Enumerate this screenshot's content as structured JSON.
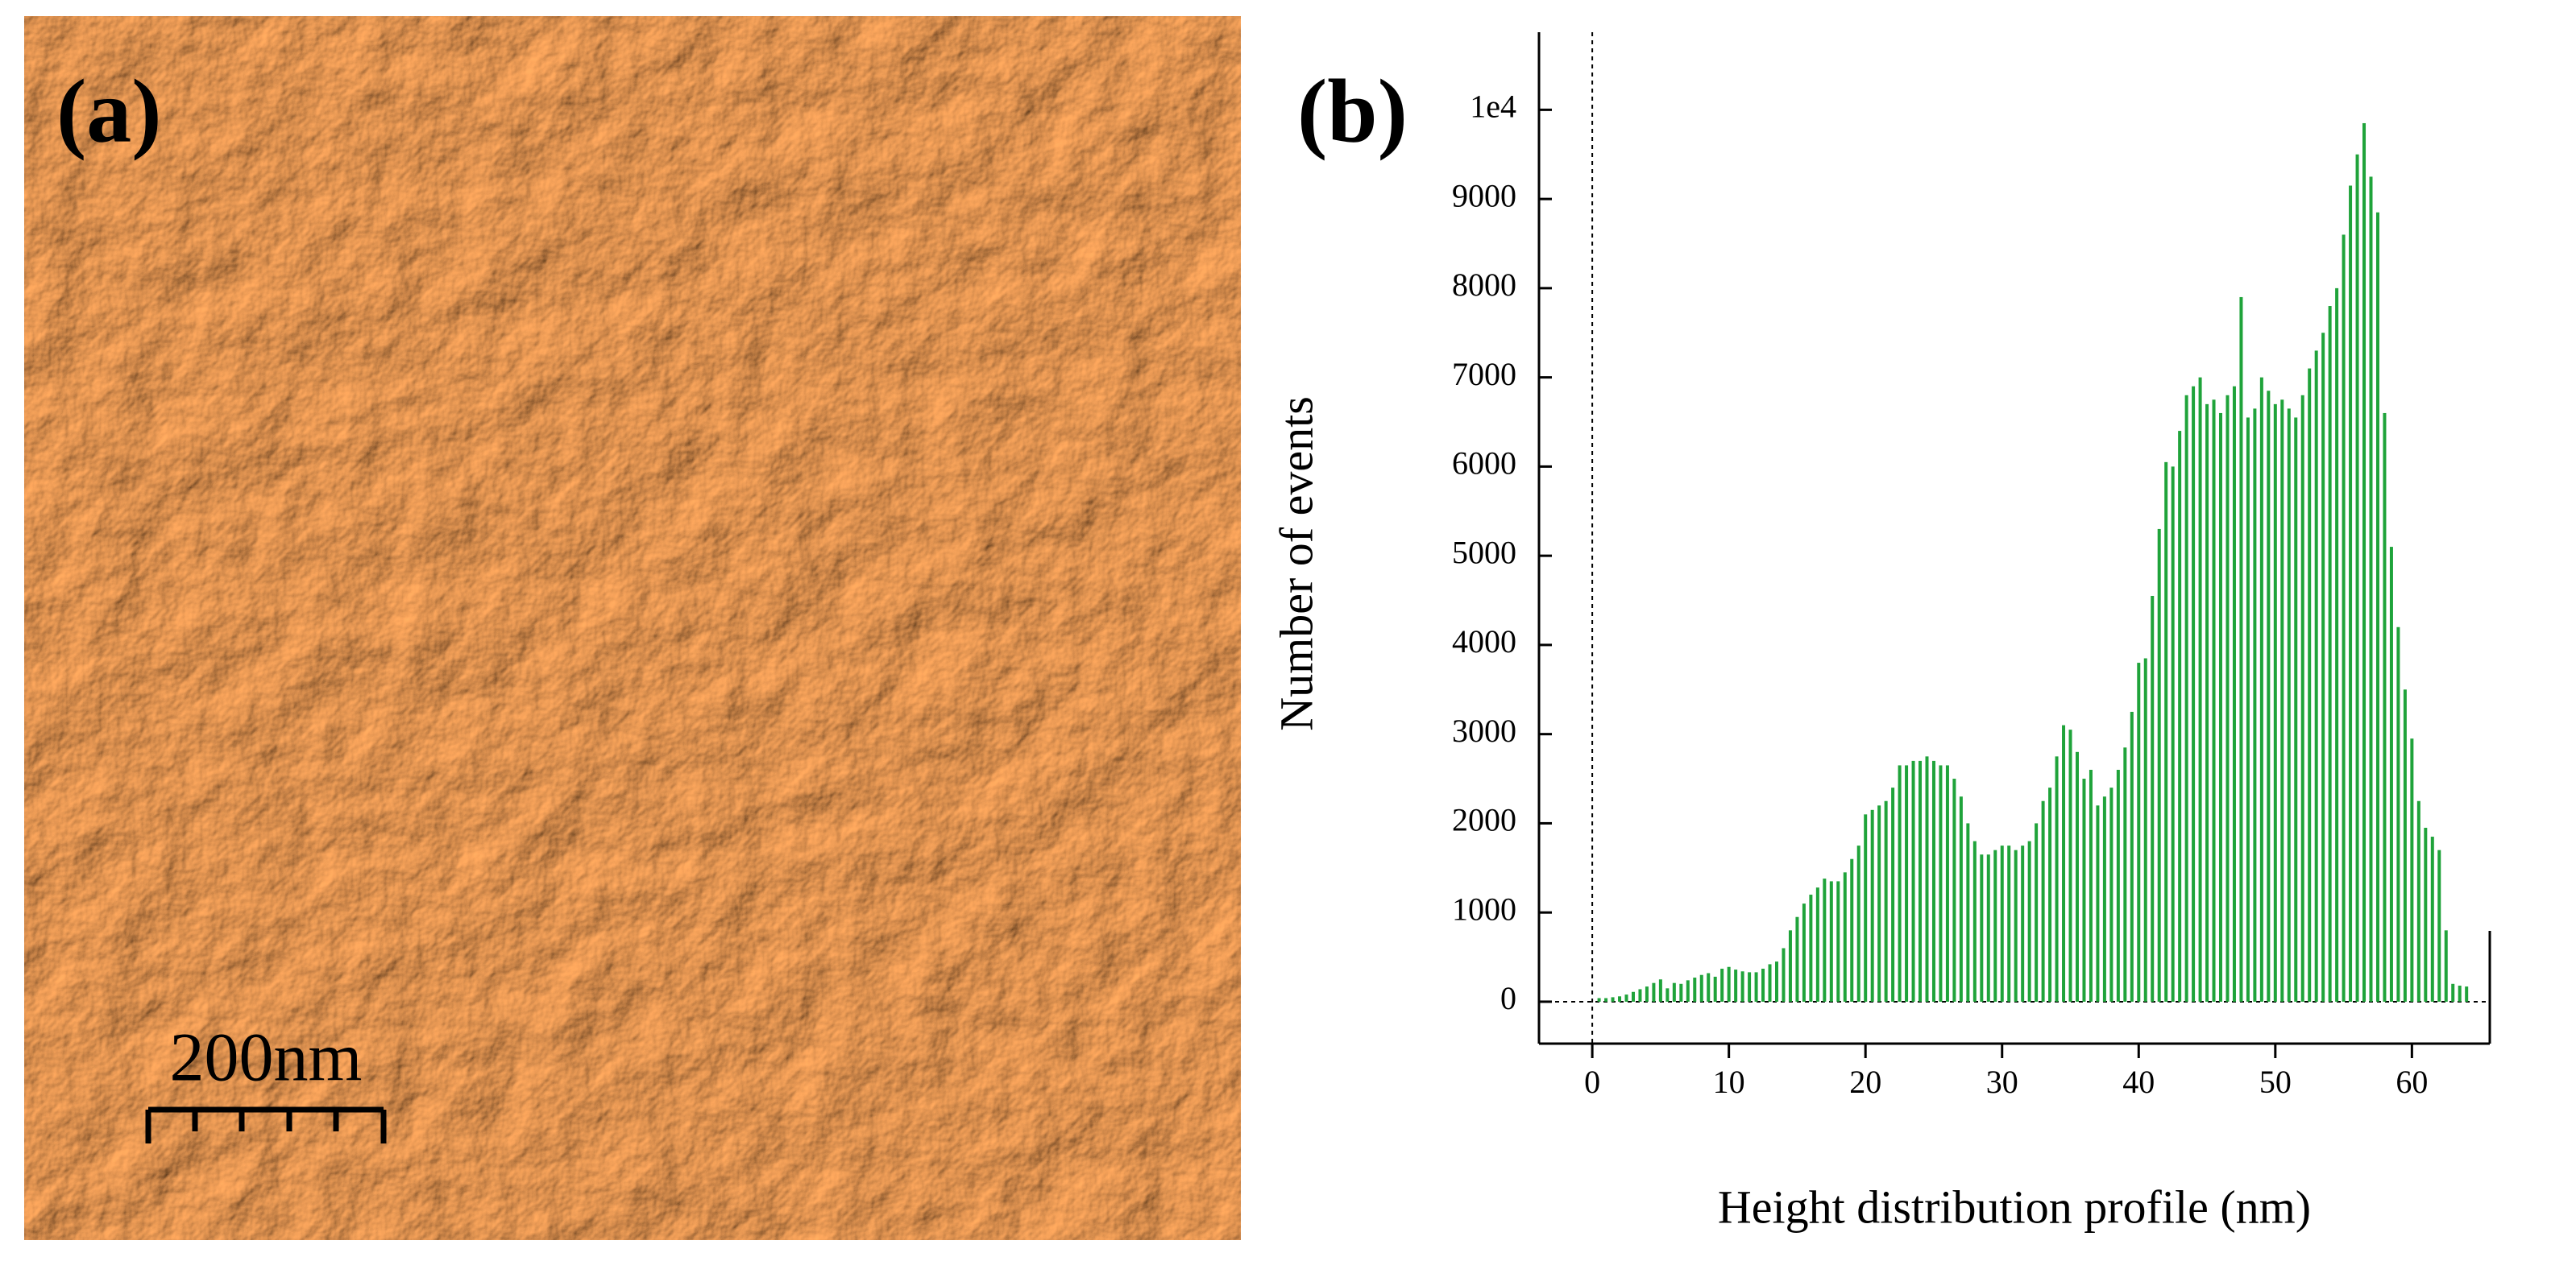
{
  "image_panel": {
    "label": "(a)",
    "scale_bar": "200nm"
  },
  "chart_data": {
    "type": "bar",
    "panel_label": "(b)",
    "ylabel": "Number of events",
    "xlabel": "Height distribution profile  (nm)",
    "color": "#1fa33a",
    "x": [
      0.5,
      1,
      1.5,
      2,
      2.5,
      3,
      3.5,
      4,
      4.5,
      5,
      5.5,
      6,
      6.5,
      7,
      7.5,
      8,
      8.5,
      9,
      9.5,
      10,
      10.5,
      11,
      11.5,
      12,
      12.5,
      13,
      13.5,
      14,
      14.5,
      15,
      15.5,
      16,
      16.5,
      17,
      17.5,
      18,
      18.5,
      19,
      19.5,
      20,
      20.5,
      21,
      21.5,
      22,
      22.5,
      23,
      23.5,
      24,
      24.5,
      25,
      25.5,
      26,
      26.5,
      27,
      27.5,
      28,
      28.5,
      29,
      29.5,
      30,
      30.5,
      31,
      31.5,
      32,
      32.5,
      33,
      33.5,
      34,
      34.5,
      35,
      35.5,
      36,
      36.5,
      37,
      37.5,
      38,
      38.5,
      39,
      39.5,
      40,
      40.5,
      41,
      41.5,
      42,
      42.5,
      43,
      43.5,
      44,
      44.5,
      45,
      45.5,
      46,
      46.5,
      47,
      47.5,
      48,
      48.5,
      49,
      49.5,
      50,
      50.5,
      51,
      51.5,
      52,
      52.5,
      53,
      53.5,
      54,
      54.5,
      55,
      55.5,
      56,
      56.5,
      57,
      57.5,
      58,
      58.5,
      59,
      59.5,
      60,
      60.5,
      61,
      61.5,
      62,
      62.5,
      63,
      63.5,
      64
    ],
    "values": [
      40,
      40,
      50,
      60,
      80,
      110,
      140,
      170,
      210,
      250,
      150,
      210,
      200,
      240,
      270,
      300,
      320,
      280,
      370,
      390,
      360,
      340,
      330,
      330,
      370,
      420,
      450,
      600,
      800,
      950,
      1100,
      1200,
      1280,
      1380,
      1350,
      1350,
      1450,
      1600,
      1750,
      2100,
      2150,
      2200,
      2250,
      2400,
      2650,
      2650,
      2700,
      2700,
      2750,
      2700,
      2650,
      2650,
      2500,
      2300,
      2000,
      1800,
      1650,
      1650,
      1700,
      1750,
      1750,
      1700,
      1750,
      1800,
      2000,
      2250,
      2400,
      2750,
      3100,
      3050,
      2800,
      2500,
      2600,
      2200,
      2300,
      2400,
      2600,
      2850,
      3250,
      3800,
      3850,
      4550,
      5300,
      6050,
      6000,
      6400,
      6800,
      6900,
      7000,
      6700,
      6750,
      6600,
      6800,
      6900,
      7900,
      6550,
      6650,
      7000,
      6850,
      6700,
      6750,
      6650,
      6550,
      6800,
      7100,
      7300,
      7500,
      7800,
      8000,
      8600,
      9150,
      9500,
      9850,
      9250,
      8850,
      6600,
      5100,
      4200,
      3500,
      2950,
      2250,
      1950,
      1850,
      1700,
      800,
      200,
      180,
      170
    ],
    "xlim": [
      -3.9,
      65.7
    ],
    "ylim": [
      -470,
      10870
    ],
    "xticks": [
      0,
      10,
      20,
      30,
      40,
      50,
      60
    ],
    "yticks": [
      0,
      1000,
      2000,
      3000,
      4000,
      5000,
      6000,
      7000,
      8000,
      9000,
      {
        "value": 10000,
        "label": "1e4"
      }
    ]
  }
}
